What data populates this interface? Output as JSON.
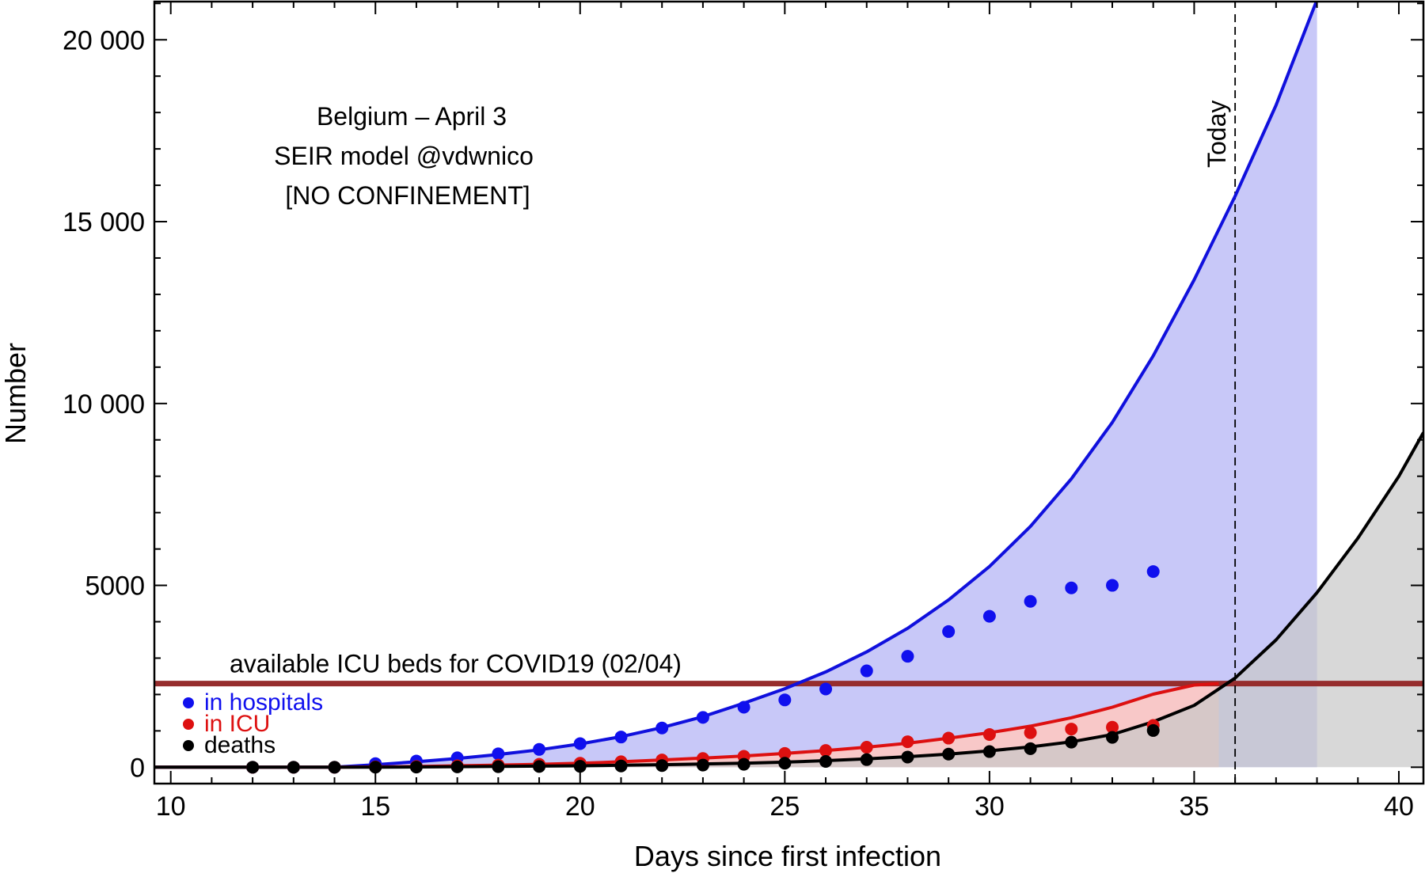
{
  "chart_data": {
    "type": "line",
    "title_lines": [
      "Belgium – April 3",
      "SEIR model @vdwnico",
      "[NO CONFINEMENT]"
    ],
    "xlabel": "Days since first infection",
    "ylabel": "Number",
    "xlim": [
      9.6,
      40.6
    ],
    "ylim": [
      -450,
      21050
    ],
    "xticks": [
      10,
      15,
      20,
      25,
      30,
      35,
      40
    ],
    "xtick_labels": [
      "10",
      "15",
      "20",
      "25",
      "30",
      "35",
      "40"
    ],
    "yticks": [
      0,
      5000,
      10000,
      15000,
      20000
    ],
    "ytick_labels": [
      "0",
      "5000",
      "10 000",
      "15 000",
      "20 000"
    ],
    "today": {
      "x": 36,
      "label": "Today"
    },
    "threshold": {
      "y": 2300,
      "label": "available ICU beds for COVID19 (02/04)",
      "color": "#962d2d"
    },
    "model_series": [
      {
        "name": "hospitals model",
        "color": "#1010dd",
        "fill": "#c8c8f8",
        "x": [
          9.6,
          14,
          15,
          16,
          17,
          18,
          19,
          20,
          21,
          22,
          23,
          24,
          25,
          26,
          27,
          28,
          29,
          30,
          31,
          32,
          33,
          34,
          35,
          36,
          37,
          38
        ],
        "y": [
          0,
          0,
          70,
          150,
          240,
          350,
          480,
          640,
          840,
          1090,
          1390,
          1760,
          2160,
          2620,
          3170,
          3820,
          4600,
          5520,
          6620,
          7930,
          9480,
          11310,
          13400,
          15700,
          18200,
          21100
        ]
      },
      {
        "name": "ICU model",
        "color": "#dd1010",
        "fill": "#f8c8c8",
        "x": [
          9.6,
          14,
          15,
          16,
          17,
          18,
          19,
          20,
          21,
          22,
          23,
          24,
          25,
          26,
          27,
          28,
          29,
          30,
          31,
          32,
          33,
          34,
          35,
          35.6
        ],
        "y": [
          0,
          0,
          10,
          20,
          40,
          60,
          80,
          110,
          150,
          200,
          250,
          310,
          380,
          460,
          550,
          660,
          800,
          950,
          1130,
          1360,
          1650,
          2010,
          2260,
          2300
        ]
      },
      {
        "name": "deaths model",
        "color": "#000000",
        "fill": "#c8c8c8",
        "x": [
          9.6,
          14,
          15,
          16,
          17,
          18,
          19,
          20,
          21,
          22,
          23,
          24,
          25,
          26,
          27,
          28,
          29,
          30,
          31,
          32,
          33,
          34,
          35,
          36,
          37,
          38,
          39,
          40,
          40.6
        ],
        "y": [
          0,
          0,
          3,
          8,
          15,
          22,
          30,
          40,
          55,
          70,
          90,
          110,
          140,
          180,
          230,
          290,
          360,
          450,
          560,
          700,
          900,
          1250,
          1700,
          2450,
          3500,
          4800,
          6300,
          8000,
          9200
        ]
      }
    ],
    "observed_series": [
      {
        "name": "in hospitals",
        "color": "#1010ee",
        "x": [
          12,
          13,
          14,
          15,
          16,
          17,
          18,
          19,
          20,
          21,
          22,
          23,
          24,
          25,
          26,
          27,
          28,
          29,
          30,
          31,
          32,
          33,
          34
        ],
        "y": [
          0,
          0,
          0,
          100,
          170,
          260,
          370,
          490,
          650,
          830,
          1080,
          1370,
          1650,
          1850,
          2150,
          2650,
          3050,
          3730,
          4150,
          4560,
          4930,
          5000,
          5380
        ]
      },
      {
        "name": "in ICU",
        "color": "#dd1010",
        "x": [
          12,
          13,
          14,
          15,
          16,
          17,
          18,
          19,
          20,
          21,
          22,
          23,
          24,
          25,
          26,
          27,
          28,
          29,
          30,
          31,
          32,
          33,
          34
        ],
        "y": [
          0,
          0,
          0,
          10,
          20,
          40,
          60,
          80,
          110,
          150,
          200,
          240,
          300,
          380,
          460,
          550,
          700,
          800,
          900,
          950,
          1050,
          1100,
          1150
        ]
      },
      {
        "name": "deaths",
        "color": "#000000",
        "x": [
          12,
          13,
          14,
          15,
          16,
          17,
          18,
          19,
          20,
          21,
          22,
          23,
          24,
          25,
          26,
          27,
          28,
          29,
          30,
          31,
          32,
          33,
          34
        ],
        "y": [
          0,
          0,
          0,
          2,
          5,
          10,
          15,
          20,
          25,
          35,
          45,
          60,
          80,
          110,
          160,
          210,
          280,
          360,
          430,
          510,
          690,
          820,
          1010
        ]
      }
    ]
  }
}
